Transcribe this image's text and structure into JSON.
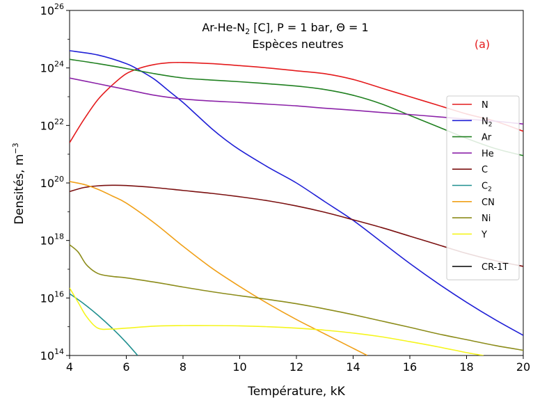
{
  "chart_data": {
    "type": "line",
    "title_line1_main": "Ar-He-N",
    "title_line1_sub": "2",
    "title_line1_rest": " [C], P = 1 bar, Θ = 1",
    "title_line2": "Espèces neutres",
    "panel_label": "(a)",
    "panel_label_color": "#e41a1c",
    "xlabel": "Température, kK",
    "ylabel_main": "Densités, m",
    "ylabel_sup": "−3",
    "xlim": [
      4,
      20
    ],
    "ylim_log10": [
      14,
      26
    ],
    "yscale": "log",
    "grid": false,
    "legend_position": "right",
    "x_ticks": [
      4,
      6,
      8,
      10,
      12,
      14,
      16,
      18,
      20
    ],
    "x_tick_labels": [
      "4",
      "6",
      "8",
      "10",
      "12",
      "14",
      "16",
      "18",
      "20"
    ],
    "y_ticks_exp": [
      14,
      16,
      18,
      20,
      22,
      24,
      26
    ],
    "y_tick_base": "10",
    "y_tick_exp_labels": [
      "14",
      "16",
      "18",
      "20",
      "22",
      "24",
      "26"
    ],
    "series": [
      {
        "name": "N",
        "name_sub": "",
        "color": "#e41a1c",
        "x": [
          4,
          4.5,
          5,
          5.5,
          6,
          6.5,
          7,
          7.5,
          8,
          9,
          10,
          11,
          12,
          13,
          14,
          15,
          16,
          17,
          18,
          19,
          20
        ],
        "log10_y": [
          21.4,
          22.2,
          22.9,
          23.4,
          23.8,
          24.0,
          24.12,
          24.18,
          24.19,
          24.15,
          24.08,
          24.0,
          23.9,
          23.8,
          23.6,
          23.3,
          23.0,
          22.7,
          22.4,
          22.15,
          21.8
        ]
      },
      {
        "name": "N",
        "name_sub": "2",
        "color": "#1f1fd6",
        "x": [
          4,
          5,
          6,
          6.5,
          7,
          7.5,
          8,
          8.5,
          9,
          9.5,
          10,
          11,
          12,
          13,
          14,
          15,
          16,
          17,
          18,
          19,
          20
        ],
        "log10_y": [
          24.6,
          24.45,
          24.15,
          23.9,
          23.6,
          23.2,
          22.8,
          22.35,
          21.9,
          21.5,
          21.15,
          20.55,
          20.0,
          19.35,
          18.7,
          17.95,
          17.2,
          16.5,
          15.85,
          15.25,
          14.7
        ]
      },
      {
        "name": "Ar",
        "name_sub": "",
        "color": "#208020",
        "x": [
          4,
          5,
          6,
          7,
          8,
          9,
          10,
          11,
          12,
          13,
          14,
          15,
          16,
          17,
          18,
          19,
          20
        ],
        "log10_y": [
          24.3,
          24.15,
          23.98,
          23.8,
          23.65,
          23.58,
          23.52,
          23.45,
          23.37,
          23.25,
          23.05,
          22.75,
          22.35,
          21.95,
          21.55,
          21.2,
          20.95
        ]
      },
      {
        "name": "He",
        "name_sub": "",
        "color": "#8b22a8",
        "x": [
          4,
          5,
          6,
          7,
          8,
          9,
          10,
          11,
          12,
          13,
          14,
          15,
          16,
          17,
          18,
          19,
          20
        ],
        "log10_y": [
          23.65,
          23.45,
          23.25,
          23.05,
          22.92,
          22.85,
          22.8,
          22.74,
          22.68,
          22.6,
          22.53,
          22.45,
          22.38,
          22.3,
          22.22,
          22.15,
          22.05
        ]
      },
      {
        "name": "C",
        "name_sub": "",
        "color": "#7b1010",
        "x": [
          4,
          4.5,
          5,
          5.5,
          6,
          7,
          8,
          9,
          10,
          11,
          12,
          13,
          14,
          15,
          16,
          17,
          18,
          19,
          20
        ],
        "log10_y": [
          19.7,
          19.84,
          19.9,
          19.92,
          19.91,
          19.84,
          19.74,
          19.64,
          19.52,
          19.38,
          19.2,
          18.98,
          18.72,
          18.45,
          18.15,
          17.85,
          17.55,
          17.3,
          17.1
        ]
      },
      {
        "name": "C",
        "name_sub": "2",
        "color": "#1f8f8f",
        "x": [
          4,
          4.5,
          5,
          5.5,
          6,
          6.4
        ],
        "log10_y": [
          16.15,
          15.8,
          15.4,
          14.95,
          14.45,
          14.0
        ]
      },
      {
        "name": "CN",
        "name_sub": "",
        "color": "#f0a018",
        "x": [
          4,
          4.5,
          5,
          5.5,
          6,
          7,
          8,
          9,
          10,
          11,
          12,
          13,
          14,
          14.5
        ],
        "log10_y": [
          20.05,
          19.95,
          19.78,
          19.55,
          19.3,
          18.6,
          17.8,
          17.05,
          16.4,
          15.8,
          15.25,
          14.75,
          14.25,
          14.0
        ]
      },
      {
        "name": "Ni",
        "name_sub": "",
        "color": "#8c8c1a",
        "x": [
          4,
          4.3,
          4.6,
          5,
          5.5,
          6,
          7,
          8,
          9,
          10,
          11,
          12,
          13,
          14,
          15,
          16,
          17,
          18,
          19,
          20
        ],
        "log10_y": [
          17.85,
          17.6,
          17.15,
          16.85,
          16.75,
          16.7,
          16.55,
          16.38,
          16.22,
          16.08,
          15.95,
          15.8,
          15.62,
          15.42,
          15.2,
          14.98,
          14.75,
          14.55,
          14.35,
          14.18
        ]
      },
      {
        "name": "Y",
        "name_sub": "",
        "color": "#f5f51c",
        "x": [
          4,
          4.3,
          4.6,
          5,
          5.5,
          6,
          7,
          8,
          9,
          10,
          11,
          12,
          13,
          14,
          15,
          16,
          17,
          18,
          18.6
        ],
        "log10_y": [
          16.35,
          15.85,
          15.35,
          14.95,
          14.92,
          14.95,
          15.02,
          15.04,
          15.04,
          15.03,
          15.0,
          14.95,
          14.88,
          14.78,
          14.65,
          14.48,
          14.3,
          14.1,
          14.0
        ]
      }
    ],
    "legend_extra": {
      "name": "CR-1T",
      "color": "#000000"
    }
  }
}
